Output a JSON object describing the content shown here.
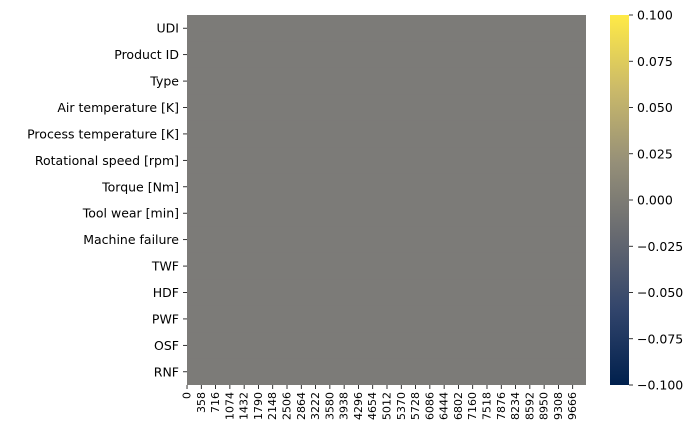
{
  "chart_data": {
    "type": "heatmap",
    "title": "",
    "xlabel": "",
    "ylabel": "",
    "rows": [
      "UDI",
      "Product ID",
      "Type",
      "Air temperature [K]",
      "Process temperature [K]",
      "Rotational speed [rpm]",
      "Torque [Nm]",
      "Tool wear [min]",
      "Machine failure",
      "TWF",
      "HDF",
      "PWF",
      "OSF",
      "RNF"
    ],
    "x_ticks": [
      "0",
      "358",
      "716",
      "1074",
      "1432",
      "1790",
      "2148",
      "2506",
      "2864",
      "3222",
      "3580",
      "3938",
      "4296",
      "4654",
      "5012",
      "5370",
      "5728",
      "6086",
      "6444",
      "6802",
      "7160",
      "7518",
      "7876",
      "8234",
      "8592",
      "8950",
      "9308",
      "9666"
    ],
    "x_range": [
      0,
      10000
    ],
    "value": 0,
    "colormap": "cividis",
    "colorbar": {
      "range": [
        -0.1,
        0.1
      ],
      "ticks": [
        "0.100",
        "0.075",
        "0.050",
        "0.025",
        "0.000",
        "−0.025",
        "−0.050",
        "−0.075",
        "−0.100"
      ],
      "tick_values": [
        0.1,
        0.075,
        0.05,
        0.025,
        0.0,
        -0.025,
        -0.05,
        -0.075,
        -0.1
      ],
      "stops": [
        "#00204d",
        "#31446b",
        "#666970",
        "#958f78",
        "#cbba69",
        "#ffea46"
      ]
    },
    "cell_color": "#7c7b78"
  }
}
